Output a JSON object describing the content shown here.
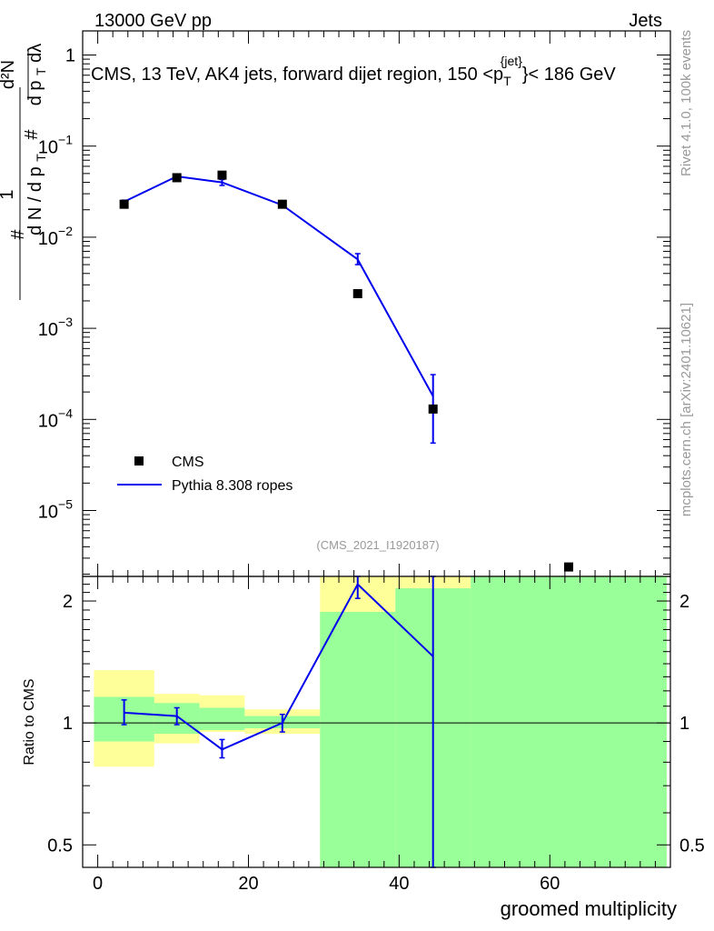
{
  "header": {
    "left": "13000 GeV pp",
    "right": "Jets"
  },
  "side_labels": {
    "top": "Rivet 4.1.0,  100k events",
    "bottom": "mcplots.cern.ch [arXiv:2401.10621]"
  },
  "chart_data": [
    {
      "type": "scatter",
      "role": "main",
      "title": "CMS, 13 TeV, AK4 jets, forward dijet region, 150 <p_T^{jet}> < 186 GeV",
      "title_parts": {
        "pre": "CMS, 13 TeV, AK4 jets, forward dijet region, 150 <p",
        "sub": "T",
        "sup": "{jet}",
        "post": "}< 186 GeV"
      },
      "ylabel_parts": {
        "hash": "#",
        "one": "1",
        "den": "d N / d p",
        "den_sub": "T",
        "num_hash": "#",
        "num_top": "d²N",
        "num_bottom": "d p",
        "num_bottom_sub": "T",
        "num_bottom_post": " dλ"
      },
      "yscale": "log",
      "ylim": [
        2.4e-06,
        1.5
      ],
      "xlim": [
        -2,
        76
      ],
      "y_ticks": [
        {
          "value": 1,
          "base": "1",
          "exp": ""
        },
        {
          "value": 0.1,
          "base": "10",
          "exp": "−1"
        },
        {
          "value": 0.01,
          "base": "10",
          "exp": "−2"
        },
        {
          "value": 0.001,
          "base": "10",
          "exp": "−3"
        },
        {
          "value": 0.0001,
          "base": "10",
          "exp": "−4"
        },
        {
          "value": 1e-05,
          "base": "10",
          "exp": "−5"
        }
      ],
      "annotation": "(CMS_2021_I1920187)",
      "legend": [
        "CMS",
        "Pythia 8.308 ropes"
      ],
      "series": [
        {
          "name": "CMS",
          "kind": "points",
          "points": [
            {
              "x": 3.5,
              "y": 0.023
            },
            {
              "x": 10.5,
              "y": 0.045
            },
            {
              "x": 16.5,
              "y": 0.048
            },
            {
              "x": 24.5,
              "y": 0.023
            },
            {
              "x": 34.5,
              "y": 0.0024
            },
            {
              "x": 44.5,
              "y": 0.00013
            },
            {
              "x": 62.5,
              "y": 2.4e-06
            }
          ]
        },
        {
          "name": "Pythia 8.308 ropes",
          "kind": "line",
          "color": "#0000ee",
          "points": [
            {
              "x": 3.5,
              "y": 0.0245,
              "lo": 0.0235,
              "hi": 0.0255
            },
            {
              "x": 10.5,
              "y": 0.0465,
              "lo": 0.0445,
              "hi": 0.0485
            },
            {
              "x": 16.5,
              "y": 0.04,
              "lo": 0.037,
              "hi": 0.043
            },
            {
              "x": 24.5,
              "y": 0.0225,
              "lo": 0.0215,
              "hi": 0.0235
            },
            {
              "x": 34.5,
              "y": 0.0057,
              "lo": 0.005,
              "hi": 0.0066
            },
            {
              "x": 44.5,
              "y": 0.00018,
              "lo": 5.5e-05,
              "hi": 0.00031
            }
          ]
        }
      ]
    },
    {
      "type": "line",
      "role": "ratio",
      "ylabel": "Ratio to CMS",
      "xlabel": "groomed multiplicity",
      "yscale": "log",
      "ylim": [
        0.44,
        2.3
      ],
      "xlim": [
        -2,
        76
      ],
      "y_ticks": [
        {
          "value": 0.5,
          "label": "0.5"
        },
        {
          "value": 1,
          "label": "1"
        },
        {
          "value": 2,
          "label": "2"
        }
      ],
      "x_ticks": [
        {
          "value": 0,
          "label": "0"
        },
        {
          "value": 20,
          "label": "20"
        },
        {
          "value": 40,
          "label": "40"
        },
        {
          "value": 60,
          "label": "60"
        }
      ],
      "reference_line": 1,
      "yellow_band": [
        {
          "x0": -0.5,
          "x1": 7.5,
          "lo": 0.78,
          "hi": 1.35
        },
        {
          "x0": 7.5,
          "x1": 13.5,
          "lo": 0.89,
          "hi": 1.18
        },
        {
          "x0": 13.5,
          "x1": 19.5,
          "lo": 0.95,
          "hi": 1.17
        },
        {
          "x0": 19.5,
          "x1": 29.5,
          "lo": 0.94,
          "hi": 1.08
        },
        {
          "x0": 29.5,
          "x1": 39.5,
          "lo": 0.44,
          "hi": 2.3
        },
        {
          "x0": 39.5,
          "x1": 49.5,
          "lo": 0.44,
          "hi": 2.3
        },
        {
          "x0": 49.5,
          "x1": 75.5,
          "lo": 0.44,
          "hi": 2.3
        }
      ],
      "green_band": [
        {
          "x0": -0.5,
          "x1": 7.5,
          "lo": 0.9,
          "hi": 1.16
        },
        {
          "x0": 7.5,
          "x1": 13.5,
          "lo": 0.94,
          "hi": 1.12
        },
        {
          "x0": 13.5,
          "x1": 19.5,
          "lo": 0.96,
          "hi": 1.09
        },
        {
          "x0": 19.5,
          "x1": 29.5,
          "lo": 0.97,
          "hi": 1.04
        },
        {
          "x0": 29.5,
          "x1": 39.5,
          "lo": 0.44,
          "hi": 1.88
        },
        {
          "x0": 39.5,
          "x1": 49.5,
          "lo": 0.44,
          "hi": 2.15
        },
        {
          "x0": 49.5,
          "x1": 75.5,
          "lo": 0.44,
          "hi": 2.3
        }
      ],
      "series": [
        {
          "name": "Pythia 8.308 ropes",
          "color": "#0000ee",
          "points": [
            {
              "x": 3.5,
              "y": 1.06,
              "lo": 0.99,
              "hi": 1.14
            },
            {
              "x": 10.5,
              "y": 1.04,
              "lo": 0.99,
              "hi": 1.09
            },
            {
              "x": 16.5,
              "y": 0.86,
              "lo": 0.82,
              "hi": 0.91
            },
            {
              "x": 24.5,
              "y": 1.0,
              "lo": 0.95,
              "hi": 1.05
            },
            {
              "x": 34.5,
              "y": 2.2,
              "lo": 2.03,
              "hi": 2.3
            },
            {
              "x": 44.5,
              "y": 1.46,
              "lo": 0.37,
              "hi": 2.3
            }
          ]
        }
      ]
    }
  ]
}
